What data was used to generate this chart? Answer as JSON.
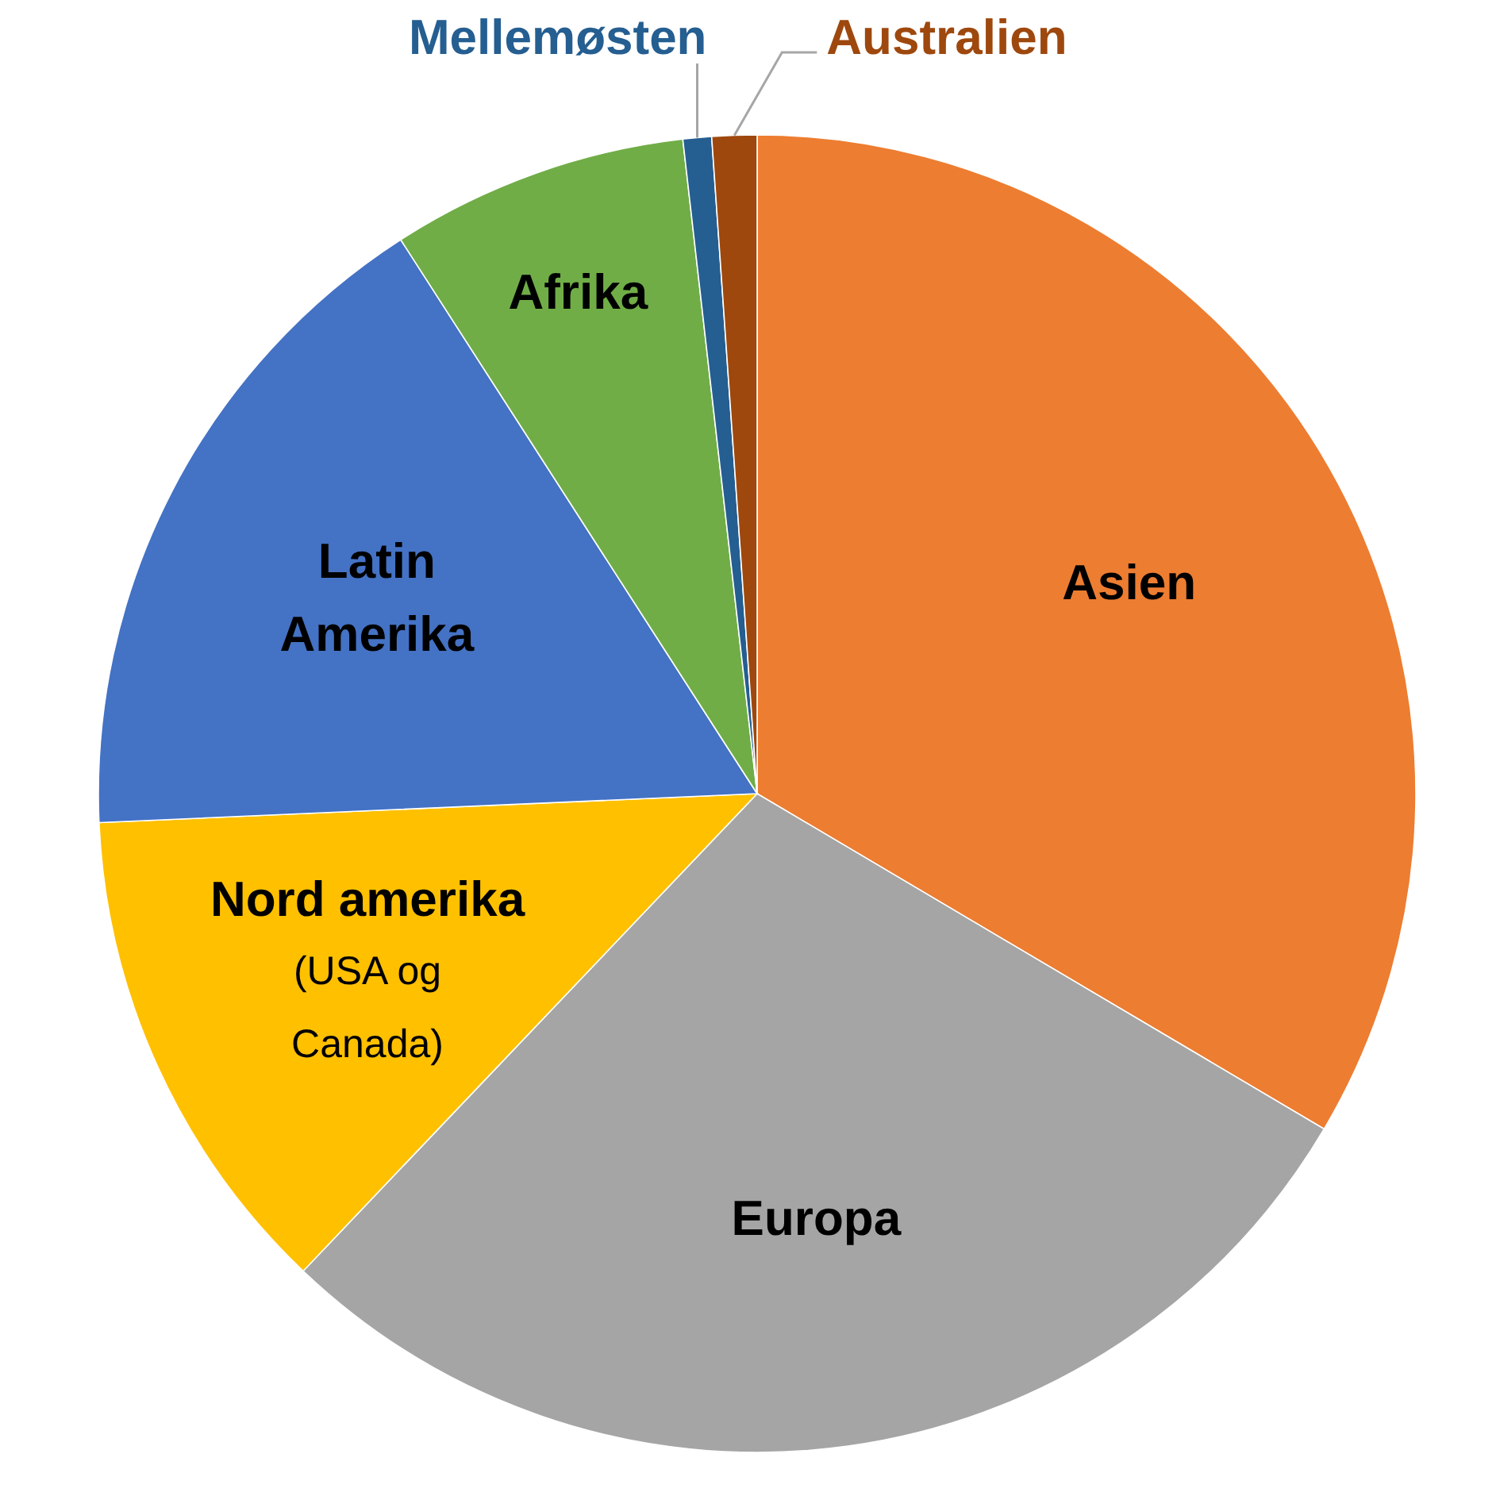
{
  "chart_data": {
    "type": "pie",
    "categories": [
      "Asien",
      "Europa",
      "Nord amerika\n(USA og\nCanada)",
      "Latin\nAmerika",
      "Afrika",
      "Mellemøsten",
      "Australien"
    ],
    "values": [
      33.5,
      28.6,
      12.2,
      16.6,
      7.3,
      0.7,
      1.1
    ],
    "colors": [
      "#ed7d31",
      "#a5a5a5",
      "#ffc000",
      "#4472c4",
      "#70ad47",
      "#255e91",
      "#9e480e"
    ]
  }
}
